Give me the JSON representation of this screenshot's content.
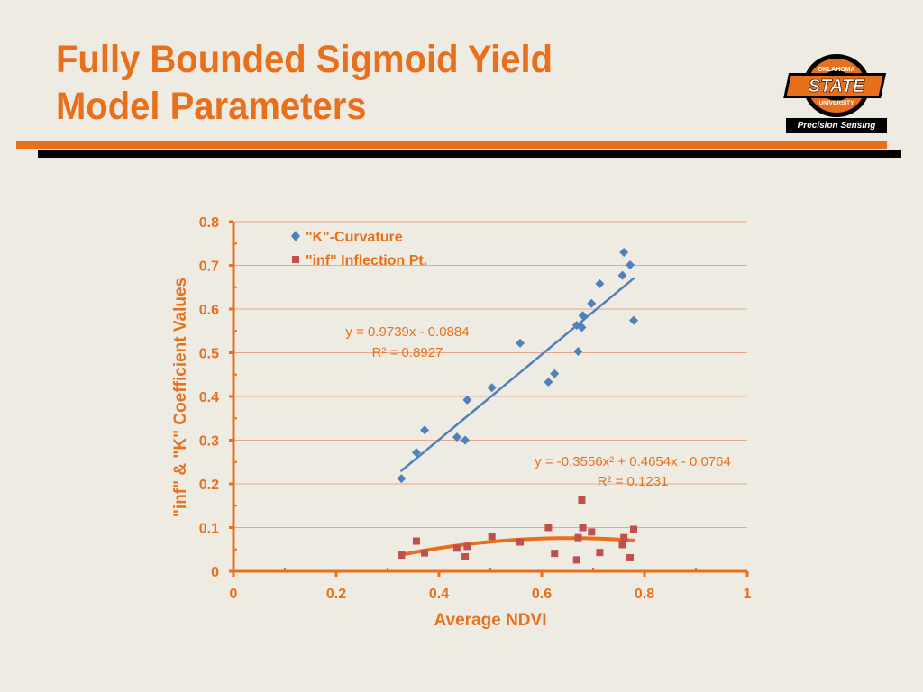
{
  "slide": {
    "title_line1": "Fully Bounded Sigmoid Yield",
    "title_line2": "Model Parameters"
  },
  "logo": {
    "top_text": "OKLAHOMA",
    "main_text": "STATE",
    "university_text": "UNIVERSITY",
    "banner_text": "Precision Sensing"
  },
  "colors": {
    "title": "#E8701D",
    "axis": "#E8701D",
    "series_k": "#4F81BD",
    "series_inf": "#C0504D",
    "trend_k": "#4F81BD",
    "trend_inf": "#E8701D",
    "gridline": "#E6A88C"
  },
  "chart_data": {
    "type": "scatter",
    "xlabel": "Average NDVI",
    "ylabel": "\"inf\" & \"K\" Coefficient Values",
    "xlim": [
      0,
      1
    ],
    "ylim": [
      0,
      0.8
    ],
    "x_ticks": [
      "0",
      "0.2",
      "0.4",
      "0.6",
      "0.8",
      "1"
    ],
    "y_ticks": [
      "0",
      "0.1",
      "0.2",
      "0.3",
      "0.4",
      "0.5",
      "0.6",
      "0.7",
      "0.8"
    ],
    "grid": "horizontal",
    "legend_position": "top-left",
    "series": [
      {
        "name": "\"K\"-Curvature",
        "marker": "diamond",
        "points": [
          [
            0.327,
            0.212
          ],
          [
            0.356,
            0.272
          ],
          [
            0.372,
            0.323
          ],
          [
            0.435,
            0.307
          ],
          [
            0.451,
            0.3
          ],
          [
            0.455,
            0.392
          ],
          [
            0.503,
            0.42
          ],
          [
            0.558,
            0.522
          ],
          [
            0.613,
            0.433
          ],
          [
            0.625,
            0.452
          ],
          [
            0.668,
            0.563
          ],
          [
            0.671,
            0.503
          ],
          [
            0.678,
            0.558
          ],
          [
            0.68,
            0.585
          ],
          [
            0.697,
            0.613
          ],
          [
            0.713,
            0.658
          ],
          [
            0.757,
            0.677
          ],
          [
            0.76,
            0.73
          ],
          [
            0.772,
            0.701
          ],
          [
            0.779,
            0.574
          ]
        ],
        "trendline": {
          "kind": "linear",
          "x_range": [
            0.327,
            0.779
          ],
          "equation": "y = 0.9739x - 0.0884",
          "r2": "R² = 0.8927",
          "coefficients": [
            -0.0884,
            0.9739
          ]
        }
      },
      {
        "name": "\"inf\" Inflection Pt.",
        "marker": "square",
        "points": [
          [
            0.327,
            0.037
          ],
          [
            0.356,
            0.069
          ],
          [
            0.372,
            0.042
          ],
          [
            0.435,
            0.053
          ],
          [
            0.451,
            0.033
          ],
          [
            0.455,
            0.057
          ],
          [
            0.503,
            0.08
          ],
          [
            0.558,
            0.067
          ],
          [
            0.613,
            0.1
          ],
          [
            0.625,
            0.041
          ],
          [
            0.668,
            0.026
          ],
          [
            0.671,
            0.077
          ],
          [
            0.678,
            0.163
          ],
          [
            0.68,
            0.1
          ],
          [
            0.697,
            0.09
          ],
          [
            0.713,
            0.043
          ],
          [
            0.757,
            0.061
          ],
          [
            0.76,
            0.077
          ],
          [
            0.772,
            0.031
          ],
          [
            0.779,
            0.096
          ]
        ],
        "trendline": {
          "kind": "polynomial",
          "x_range": [
            0.327,
            0.779
          ],
          "equation": "y = -0.3556x² + 0.4654x - 0.0764",
          "r2": "R² = 0.1231",
          "coefficients": [
            -0.0764,
            0.4654,
            -0.3556
          ]
        }
      }
    ]
  }
}
